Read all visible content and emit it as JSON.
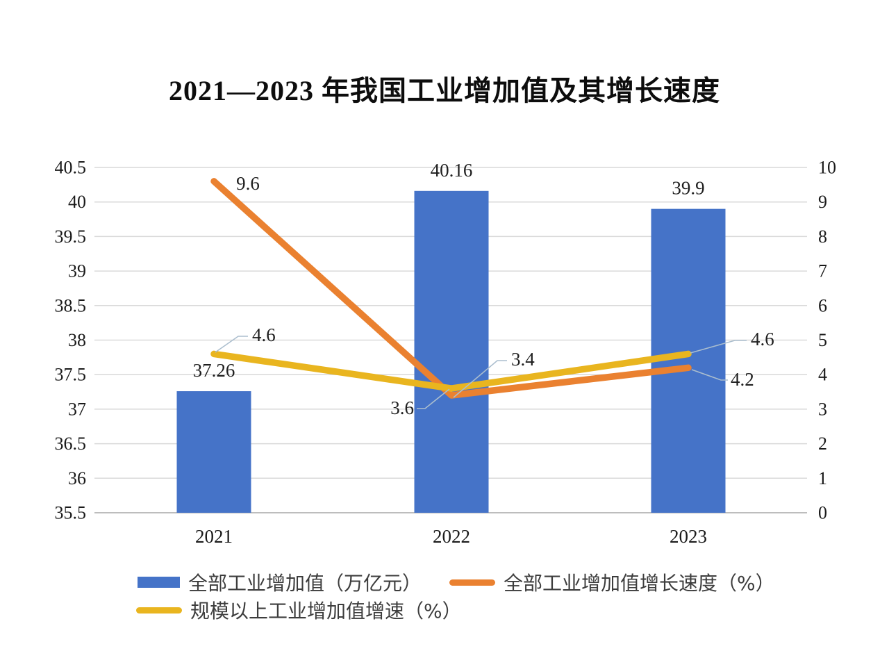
{
  "title": "2021—2023 年我国工业增加值及其增长速度",
  "chart_data": {
    "type": "combo",
    "title": "2021—2023 年我国工业增加值及其增长速度",
    "categories": [
      "2021",
      "2022",
      "2023"
    ],
    "series": [
      {
        "name": "全部工业增加值（万亿元）",
        "type": "bar",
        "axis": "left",
        "values": [
          37.26,
          40.16,
          39.9
        ],
        "labels": [
          "37.26",
          "40.16",
          "39.9"
        ],
        "color": "#4573C8"
      },
      {
        "name": "全部工业增加值增长速度（%）",
        "type": "line",
        "axis": "right",
        "values": [
          9.6,
          3.4,
          4.2
        ],
        "labels": [
          "9.6",
          "3.4",
          "4.2"
        ],
        "color": "#EA8130"
      },
      {
        "name": "规模以上工业增加值增速（%）",
        "type": "line",
        "axis": "right",
        "values": [
          4.6,
          3.6,
          4.6
        ],
        "labels": [
          "4.6",
          "3.6",
          "4.6"
        ],
        "color": "#E9B51F"
      }
    ],
    "left_axis": {
      "min": 35.5,
      "max": 40.5,
      "step": 0.5,
      "ticks": [
        "40.5",
        "40",
        "39.5",
        "39",
        "38.5",
        "38",
        "37.5",
        "37",
        "36.5",
        "36",
        "35.5"
      ]
    },
    "right_axis": {
      "min": 0,
      "max": 10,
      "step": 1,
      "ticks": [
        "10",
        "9",
        "8",
        "7",
        "6",
        "5",
        "4",
        "3",
        "2",
        "1",
        "0"
      ]
    },
    "grid": true,
    "legend_position": "bottom"
  },
  "colors": {
    "bar_blue": "#4573C8",
    "line_orange": "#EA8130",
    "line_yellow": "#E9B51F",
    "gridline": "#D9D9D9",
    "axis_line": "#BDBDBD",
    "leader_line": "#ABBECE",
    "tick_text": "#1A1A1A",
    "label_text": "#1F1F1F",
    "legend_text": "#3D3D3D"
  }
}
